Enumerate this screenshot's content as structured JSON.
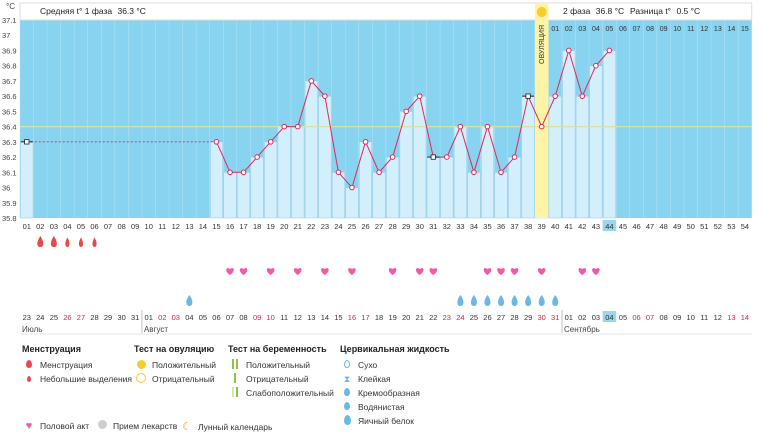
{
  "header": {
    "unit": "°C",
    "phase1_label": "Средняя t° 1 фаза",
    "phase1_value": "36.3 °C",
    "phase2_label": "2 фаза",
    "phase2_value": "36.8 °C",
    "diff_label": "Разница t°",
    "diff_value": "0.5 °C",
    "ovulation_label": "ОВУЛЯЦИЯ"
  },
  "chart_data": {
    "type": "line",
    "title": "",
    "ylabel": "°C",
    "ylim": [
      35.8,
      37.1
    ],
    "yticks": [
      37.1,
      37,
      36.9,
      36.8,
      36.7,
      36.6,
      36.5,
      36.4,
      36.3,
      36.2,
      36.1,
      36,
      35.9,
      35.8
    ],
    "coverline": 36.4,
    "ovulation_day": 39,
    "cycle_days": [
      1,
      2,
      3,
      4,
      5,
      6,
      7,
      8,
      9,
      10,
      11,
      12,
      13,
      14,
      15,
      16,
      17,
      18,
      19,
      20,
      21,
      22,
      23,
      24,
      25,
      26,
      27,
      28,
      29,
      30,
      31,
      32,
      33,
      34,
      35,
      36,
      37,
      38,
      39,
      40,
      41,
      42,
      43,
      44,
      45,
      46,
      47,
      48,
      49,
      50,
      51,
      52,
      53,
      54
    ],
    "today_day": 44,
    "temperatures": [
      {
        "day": 1,
        "t": 36.3
      },
      {
        "day": 15,
        "t": 36.3
      },
      {
        "day": 16,
        "t": 36.1
      },
      {
        "day": 17,
        "t": 36.1
      },
      {
        "day": 18,
        "t": 36.2
      },
      {
        "day": 19,
        "t": 36.3
      },
      {
        "day": 20,
        "t": 36.4
      },
      {
        "day": 21,
        "t": 36.4
      },
      {
        "day": 22,
        "t": 36.7
      },
      {
        "day": 23,
        "t": 36.6
      },
      {
        "day": 24,
        "t": 36.1
      },
      {
        "day": 25,
        "t": 36.0
      },
      {
        "day": 26,
        "t": 36.3
      },
      {
        "day": 27,
        "t": 36.1
      },
      {
        "day": 28,
        "t": 36.2
      },
      {
        "day": 29,
        "t": 36.5
      },
      {
        "day": 30,
        "t": 36.6
      },
      {
        "day": 31,
        "t": 36.2
      },
      {
        "day": 32,
        "t": 36.2
      },
      {
        "day": 33,
        "t": 36.4
      },
      {
        "day": 34,
        "t": 36.1
      },
      {
        "day": 35,
        "t": 36.4
      },
      {
        "day": 36,
        "t": 36.1
      },
      {
        "day": 37,
        "t": 36.2
      },
      {
        "day": 38,
        "t": 36.6
      },
      {
        "day": 39,
        "t": 36.4
      },
      {
        "day": 40,
        "t": 36.6
      },
      {
        "day": 41,
        "t": 36.9
      },
      {
        "day": 42,
        "t": 36.6
      },
      {
        "day": 43,
        "t": 36.8
      },
      {
        "day": 44,
        "t": 36.9
      }
    ],
    "post_ovulation_numbers": [
      "01",
      "02",
      "03",
      "04",
      "05",
      "06",
      "07",
      "08",
      "09",
      "10",
      "11",
      "12",
      "13",
      "14",
      "15"
    ],
    "menstruation": [
      {
        "day": 2,
        "size": "large"
      },
      {
        "day": 3,
        "size": "large"
      },
      {
        "day": 4,
        "size": "small"
      },
      {
        "day": 5,
        "size": "small"
      },
      {
        "day": 6,
        "size": "small"
      }
    ],
    "moon_day": 6,
    "intercourse_days": [
      16,
      17,
      19,
      21,
      23,
      25,
      28,
      30,
      31,
      35,
      36,
      37,
      39,
      42,
      43
    ],
    "cervical_fluid": [
      {
        "day": 13,
        "type": "watery"
      },
      {
        "day": 33,
        "type": "watery"
      },
      {
        "day": 34,
        "type": "watery"
      },
      {
        "day": 35,
        "type": "watery"
      },
      {
        "day": 36,
        "type": "watery"
      },
      {
        "day": 37,
        "type": "watery"
      },
      {
        "day": 38,
        "type": "watery"
      },
      {
        "day": 39,
        "type": "watery"
      },
      {
        "day": 40,
        "type": "watery"
      }
    ],
    "dates": [
      "23",
      "24",
      "25",
      "26",
      "27",
      "28",
      "29",
      "30",
      "31",
      "01",
      "02",
      "03",
      "04",
      "05",
      "06",
      "07",
      "08",
      "09",
      "10",
      "11",
      "12",
      "13",
      "14",
      "15",
      "16",
      "17",
      "18",
      "19",
      "20",
      "21",
      "22",
      "23",
      "24",
      "25",
      "26",
      "27",
      "28",
      "29",
      "30",
      "31",
      "01",
      "02",
      "03",
      "04",
      "05",
      "06",
      "07",
      "08",
      "09",
      "10",
      "11",
      "12",
      "13",
      "14"
    ],
    "weekend_day_indices": [
      4,
      5,
      11,
      12,
      18,
      19,
      25,
      26,
      32,
      33,
      39,
      40,
      46,
      47,
      53,
      54
    ],
    "months": [
      {
        "label": "Июль",
        "start_day": 1
      },
      {
        "label": "Август",
        "start_day": 10
      },
      {
        "label": "Сентябрь",
        "start_day": 41
      }
    ]
  },
  "legend": {
    "menstruation": {
      "title": "Менструация",
      "items": [
        "Менструация",
        "Небольшие выделения"
      ]
    },
    "ovulation_test": {
      "title": "Тест на овуляцию",
      "items": [
        "Положительный",
        "Отрицательный"
      ]
    },
    "pregnancy_test": {
      "title": "Тест на беременность",
      "items": [
        "Положительный",
        "Отрицательный",
        "Слабоположительный"
      ]
    },
    "cervical": {
      "title": "Цервикальная жидкость",
      "items": [
        "Сухо",
        "Клейкая",
        "Кремообразная",
        "Водянистая",
        "Яичный белок"
      ]
    },
    "bottom": [
      "Половой акт",
      "Прием лекарств",
      "Лунный календарь"
    ]
  },
  "colors": {
    "sky": "#87d3f0",
    "bar": "#d3effc",
    "bar_border": "#7fbfe0",
    "line": "#e0285a",
    "marker_fill": "#ffffff",
    "coverline": "#d8e39a",
    "ovulation_band": "#fff3a6",
    "ovulation_sun": "#f7cd2e",
    "heart": "#f25aa8",
    "drop_red": "#e84a4a",
    "drop_blue": "#6bb8e8",
    "weekend_text": "#d6204e",
    "today_cell": "#9bd6ef"
  }
}
